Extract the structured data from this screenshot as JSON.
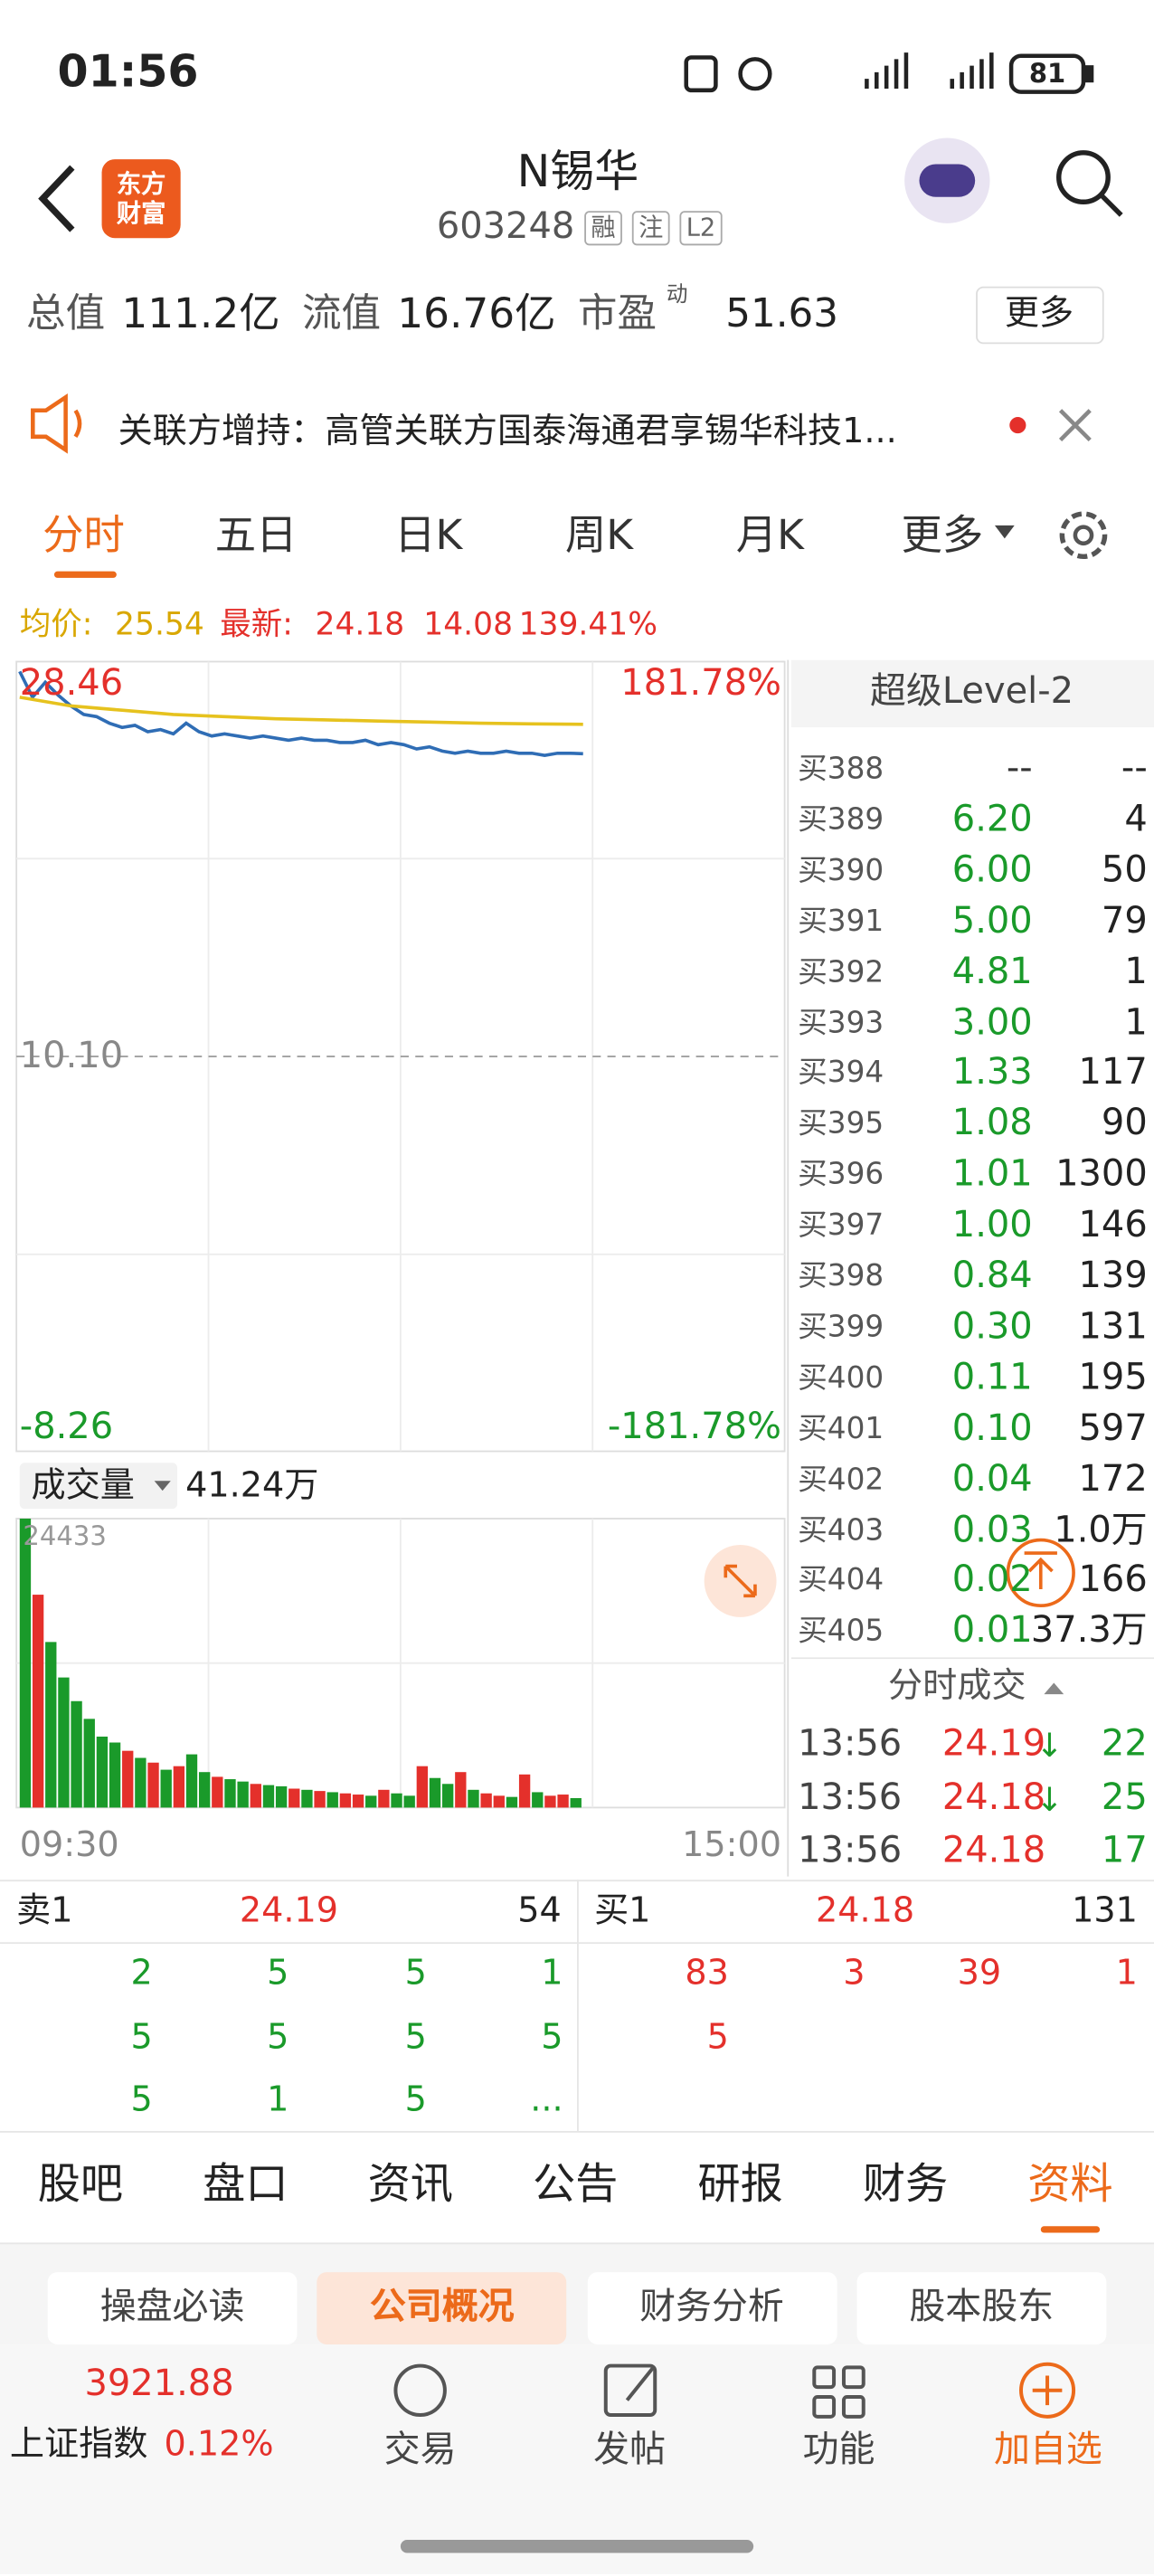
{
  "status": {
    "time": "01:56",
    "battery": "81"
  },
  "header": {
    "logo": "东方财富",
    "title": "N锡华",
    "code": "603248",
    "tags": [
      "融",
      "注",
      "L2"
    ]
  },
  "metrics": {
    "total_label": "总值",
    "total": "111.2亿",
    "float_label": "流值",
    "float": "16.76亿",
    "pe_label": "市盈",
    "pe_sup": "动",
    "pe": "51.63",
    "more": "更多"
  },
  "notice": "关联方增持：高管关联方国泰海通君享锡华科技1...",
  "tabs": [
    "分时",
    "五日",
    "日K",
    "周K",
    "月K",
    "更多"
  ],
  "quote": {
    "avg_label": "均价:",
    "avg": "25.54",
    "latest_label": "最新:",
    "latest": "24.18",
    "change": "14.08",
    "pct": "139.41%"
  },
  "chart_data": {
    "type": "line",
    "ylim": [
      -8.26,
      28.46
    ],
    "yticks": [
      28.46,
      {
        "value": 10.1,
        "label": "10.10"
      },
      -8.26
    ],
    "y2lim": [
      -181.78,
      181.78
    ],
    "y2ticks": [
      {
        "value": 181.78,
        "label": "181.78%"
      },
      {
        "value": -181.78,
        "label": "-181.78%"
      }
    ],
    "series": [
      {
        "name": "最新",
        "color": "#2f6db5",
        "values": [
          28.0,
          26.8,
          27.5,
          26.9,
          26.4,
          26.0,
          25.9,
          25.6,
          25.4,
          25.5,
          25.2,
          25.3,
          25.1,
          25.6,
          25.2,
          25.0,
          25.1,
          25.0,
          24.9,
          25.0,
          24.9,
          24.8,
          24.9,
          24.8,
          24.8,
          24.7,
          24.7,
          24.8,
          24.6,
          24.7,
          24.6,
          24.4,
          24.5,
          24.3,
          24.2,
          24.3,
          24.2,
          24.2,
          24.3,
          24.2,
          24.2,
          24.1,
          24.2,
          24.2,
          24.18
        ]
      },
      {
        "name": "均价",
        "color": "#e6c21e",
        "values": [
          26.8,
          26.4,
          26.2,
          26.0,
          25.9,
          25.8,
          25.75,
          25.7,
          25.65,
          25.6,
          25.57,
          25.54
        ]
      }
    ],
    "volume_label": "成交量",
    "volume_total": "41.24万",
    "volume_ylim": [
      0,
      24433
    ],
    "volume_ticks": [
      24433
    ],
    "volume": [
      24433,
      18000,
      14000,
      11000,
      9000,
      7500,
      6000,
      5500,
      4800,
      4200,
      3800,
      3200,
      3500,
      4500,
      3000,
      2600,
      2400,
      2200,
      2000,
      1900,
      1800,
      1600,
      1500,
      1400,
      1300,
      1200,
      1100,
      1000,
      1500,
      1200,
      1000,
      3500,
      2500,
      2000,
      3000,
      1500,
      1200,
      1000,
      900,
      2800,
      1300,
      1000,
      1100,
      800
    ],
    "up_color": "#e4302b",
    "down_color": "#1a9a2a",
    "time_start": "09:30",
    "time_end": "15:00"
  },
  "level2": {
    "title": "超级Level-2",
    "rows": [
      [
        "买388",
        "--",
        "--"
      ],
      [
        "买389",
        "6.20",
        "4"
      ],
      [
        "买390",
        "6.00",
        "50"
      ],
      [
        "买391",
        "5.00",
        "79"
      ],
      [
        "买392",
        "4.81",
        "1"
      ],
      [
        "买393",
        "3.00",
        "1"
      ],
      [
        "买394",
        "1.33",
        "117"
      ],
      [
        "买395",
        "1.08",
        "90"
      ],
      [
        "买396",
        "1.01",
        "1300"
      ],
      [
        "买397",
        "1.00",
        "146"
      ],
      [
        "买398",
        "0.84",
        "139"
      ],
      [
        "买399",
        "0.30",
        "131"
      ],
      [
        "买400",
        "0.11",
        "195"
      ],
      [
        "买401",
        "0.10",
        "597"
      ],
      [
        "买402",
        "0.04",
        "172"
      ],
      [
        "买403",
        "0.03",
        "1.0万"
      ],
      [
        "买404",
        "0.02",
        "166"
      ],
      [
        "买405",
        "0.01",
        "37.3万"
      ]
    ]
  },
  "trades": {
    "title": "分时成交",
    "rows": [
      [
        "13:56",
        "24.19",
        "↓",
        "22"
      ],
      [
        "13:56",
        "24.18",
        "↓",
        "25"
      ],
      [
        "13:56",
        "24.18",
        "17"
      ]
    ]
  },
  "orderbook": {
    "sell": {
      "label": "卖1",
      "price": "24.19",
      "qty": "54",
      "queue": [
        "2",
        "5",
        "5",
        "1",
        "5",
        "5",
        "5",
        "5",
        "5",
        "1",
        "5",
        "..."
      ]
    },
    "buy": {
      "label": "买1",
      "price": "24.18",
      "qty": "131",
      "queue": [
        "83",
        "3",
        "39",
        "1",
        "5"
      ]
    }
  },
  "sections": [
    "股吧",
    "盘口",
    "资讯",
    "公告",
    "研报",
    "财务",
    "资料"
  ],
  "subtabs": [
    "操盘必读",
    "公司概况",
    "财务分析",
    "股本股东"
  ],
  "bottom": {
    "index_value": "3921.88",
    "index_name": "上证指数",
    "index_pct": "0.12%",
    "actions": [
      "交易",
      "发帖",
      "功能",
      "加自选"
    ]
  }
}
